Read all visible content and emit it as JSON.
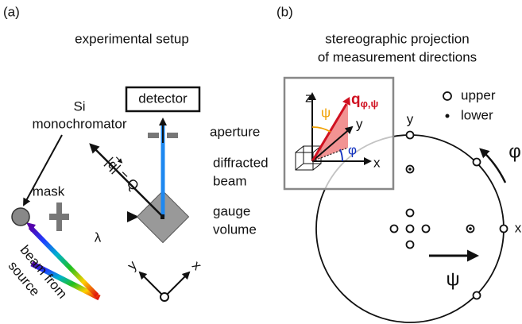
{
  "panel_a": {
    "label": "(a)",
    "title": "experimental setup",
    "monochromator": [
      "Si",
      "monochromator"
    ],
    "mask": "mask",
    "detector": "detector",
    "aperture": "aperture",
    "scattering_vector": "|q| = Q",
    "diffracted_beam": [
      "diffracted",
      "beam"
    ],
    "gauge_volume": [
      "gauge",
      "volume"
    ],
    "wavelength": "λ",
    "source_beam": [
      "beam from",
      "source"
    ],
    "axes": {
      "y": "y",
      "x": "x"
    }
  },
  "panel_b": {
    "label": "(b)",
    "title": [
      "stereographic projection",
      "of measurement directions"
    ],
    "legend": {
      "upper": "upper",
      "lower": "lower"
    },
    "inset": {
      "z": "z",
      "y": "y",
      "x": "x",
      "q": "q",
      "q_subscript": "φ,ψ",
      "psi": "ψ",
      "phi": "φ"
    },
    "circle_axes": {
      "y": "y",
      "x": "x"
    },
    "rotation_phi": "φ",
    "tilt_psi": "ψ"
  }
}
